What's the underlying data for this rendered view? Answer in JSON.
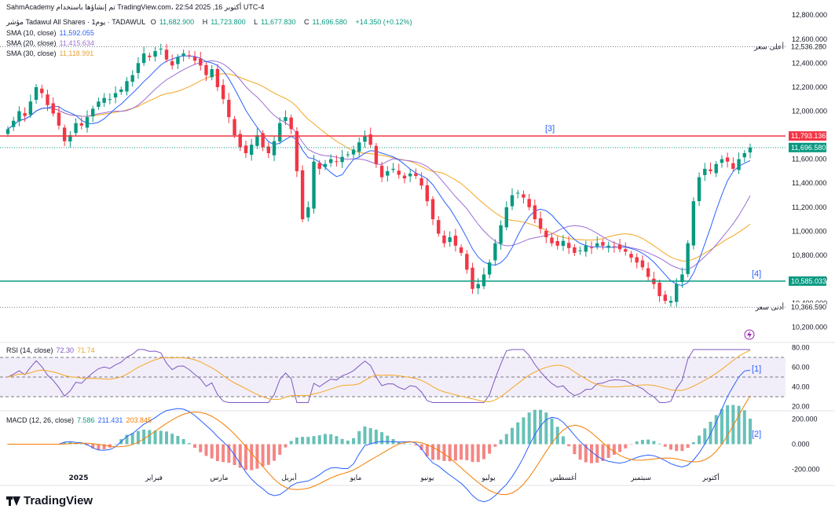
{
  "header": {
    "watermark": "SahmAcademy تم إنشاؤها باستخدام TradingView.com، 22:54 2025 ,16 أكتوبر UTC-4",
    "symbol": "مؤشر Tadawul All Shares · يوم1 · TADAWUL",
    "open_label": "O",
    "open": "11,682.900",
    "high_label": "H",
    "high": "11,723.800",
    "low_label": "L",
    "low": "11,677.830",
    "close_label": "C",
    "close": "11,696.580",
    "change": "+14.350 (+0.12%)",
    "sma10_label": "SMA (10, close)",
    "sma10_value": "11,592.055",
    "sma20_label": "SMA (20, close)",
    "sma20_value": "11,415.634",
    "sma30_label": "SMA (30, close)",
    "sma30_value": "11,118.991"
  },
  "colors": {
    "up": "#089981",
    "down": "#f23645",
    "sma10": "#2962ff",
    "sma20": "#9c6fd6",
    "sma30": "#f5a623",
    "resistance": "#f23645",
    "support": "#089981",
    "annotation": "#2962ff"
  },
  "rsi_header": {
    "label": "RSI (14, close)",
    "value": "72.30",
    "ma_value": "71.74"
  },
  "macd_header": {
    "label": "MACD (12, 26, close)",
    "hist": "7.586",
    "macd": "211.431",
    "signal": "203.845"
  },
  "annotations": {
    "a1": "[1]",
    "a2": "[2]",
    "a3": "[3]",
    "a4": "[4]"
  },
  "price_labels": {
    "high_text": "أعلى سعر",
    "high_value": "12,536.280",
    "low_text": "أدنى سعر",
    "low_value": "10,366.590",
    "resistance_value": "11,793.136",
    "current_value": "11,696.580",
    "support_value": "10,585.033"
  },
  "footer": {
    "brand": "TradingView"
  },
  "chart_data": [
    {
      "type": "candlestick",
      "x_ticks": [
        "2025",
        "فبراير",
        "مارس",
        "أبريل",
        "مايو",
        "يونيو",
        "يوليو",
        "أغسطس",
        "سبتمبر",
        "أكتوبر"
      ],
      "y_ticks": [
        "12,800.000",
        "12,600.000",
        "12,400.000",
        "12,200.000",
        "12,000.000",
        "11,800.000",
        "11,600.000",
        "11,400.000",
        "11,200.000",
        "11,000.000",
        "10,800.000",
        "10,600.000",
        "10,400.000",
        "10,200.000"
      ],
      "ylim": [
        10100,
        12860
      ],
      "levels": {
        "resistance": 11793.136,
        "support": 10585.033,
        "period_high": 12536.28,
        "period_low": 10366.59
      },
      "close_path": [
        11850,
        11920,
        12000,
        11960,
        12080,
        12200,
        12150,
        12050,
        11980,
        11880,
        11750,
        11800,
        11900,
        11880,
        11950,
        12020,
        12080,
        12110,
        12100,
        12150,
        12180,
        12250,
        12300,
        12400,
        12480,
        12450,
        12500,
        12520,
        12430,
        12380,
        12450,
        12480,
        12460,
        12420,
        12380,
        12300,
        12350,
        12200,
        12100,
        11950,
        11800,
        11700,
        11650,
        11720,
        11800,
        11700,
        11650,
        11750,
        11900,
        11950,
        11850,
        11500,
        11100,
        11200,
        11580,
        11520,
        11560,
        11600,
        11580,
        11620,
        11640,
        11680,
        11740,
        11790,
        11720,
        11560,
        11450,
        11500,
        11520,
        11470,
        11440,
        11480,
        11460,
        11380,
        11250,
        11100,
        10980,
        10900,
        10950,
        10880,
        10820,
        10680,
        10520,
        10560,
        10640,
        10740,
        10900,
        11050,
        11200,
        11300,
        11320,
        11280,
        11200,
        11100,
        11020,
        10950,
        10900,
        10880,
        10920,
        10860,
        10820,
        10840,
        10880,
        10860,
        10900,
        10880,
        10880,
        10870,
        10850,
        10830,
        10780,
        10740,
        10700,
        10620,
        10560,
        10460,
        10420,
        10420,
        10560,
        10640,
        10900,
        11250,
        11450,
        11520,
        11500,
        11560,
        11600,
        11580,
        11520,
        11600,
        11650,
        11697
      ],
      "sma10": "derived",
      "series": [
        {
          "name": "SMA (10, close)",
          "last": 11592.055
        },
        {
          "name": "SMA (20, close)",
          "last": 11415.634
        },
        {
          "name": "SMA (30, close)",
          "last": 11118.991
        }
      ]
    },
    {
      "type": "line",
      "name": "RSI (14, close)",
      "y_ticks": [
        "80.00",
        "60.00",
        "40.00",
        "20.00"
      ],
      "ylim": [
        18,
        82
      ],
      "bands": [
        70,
        50,
        30
      ],
      "last": 72.3,
      "ma_last": 71.74
    },
    {
      "type": "bar",
      "name": "MACD (12, 26, close)",
      "y_ticks": [
        "200.000",
        "0.000",
        "-200.000"
      ],
      "ylim": [
        -240,
        240
      ],
      "macd_last": 211.431,
      "signal_last": 203.845,
      "hist_last": 7.586
    }
  ]
}
